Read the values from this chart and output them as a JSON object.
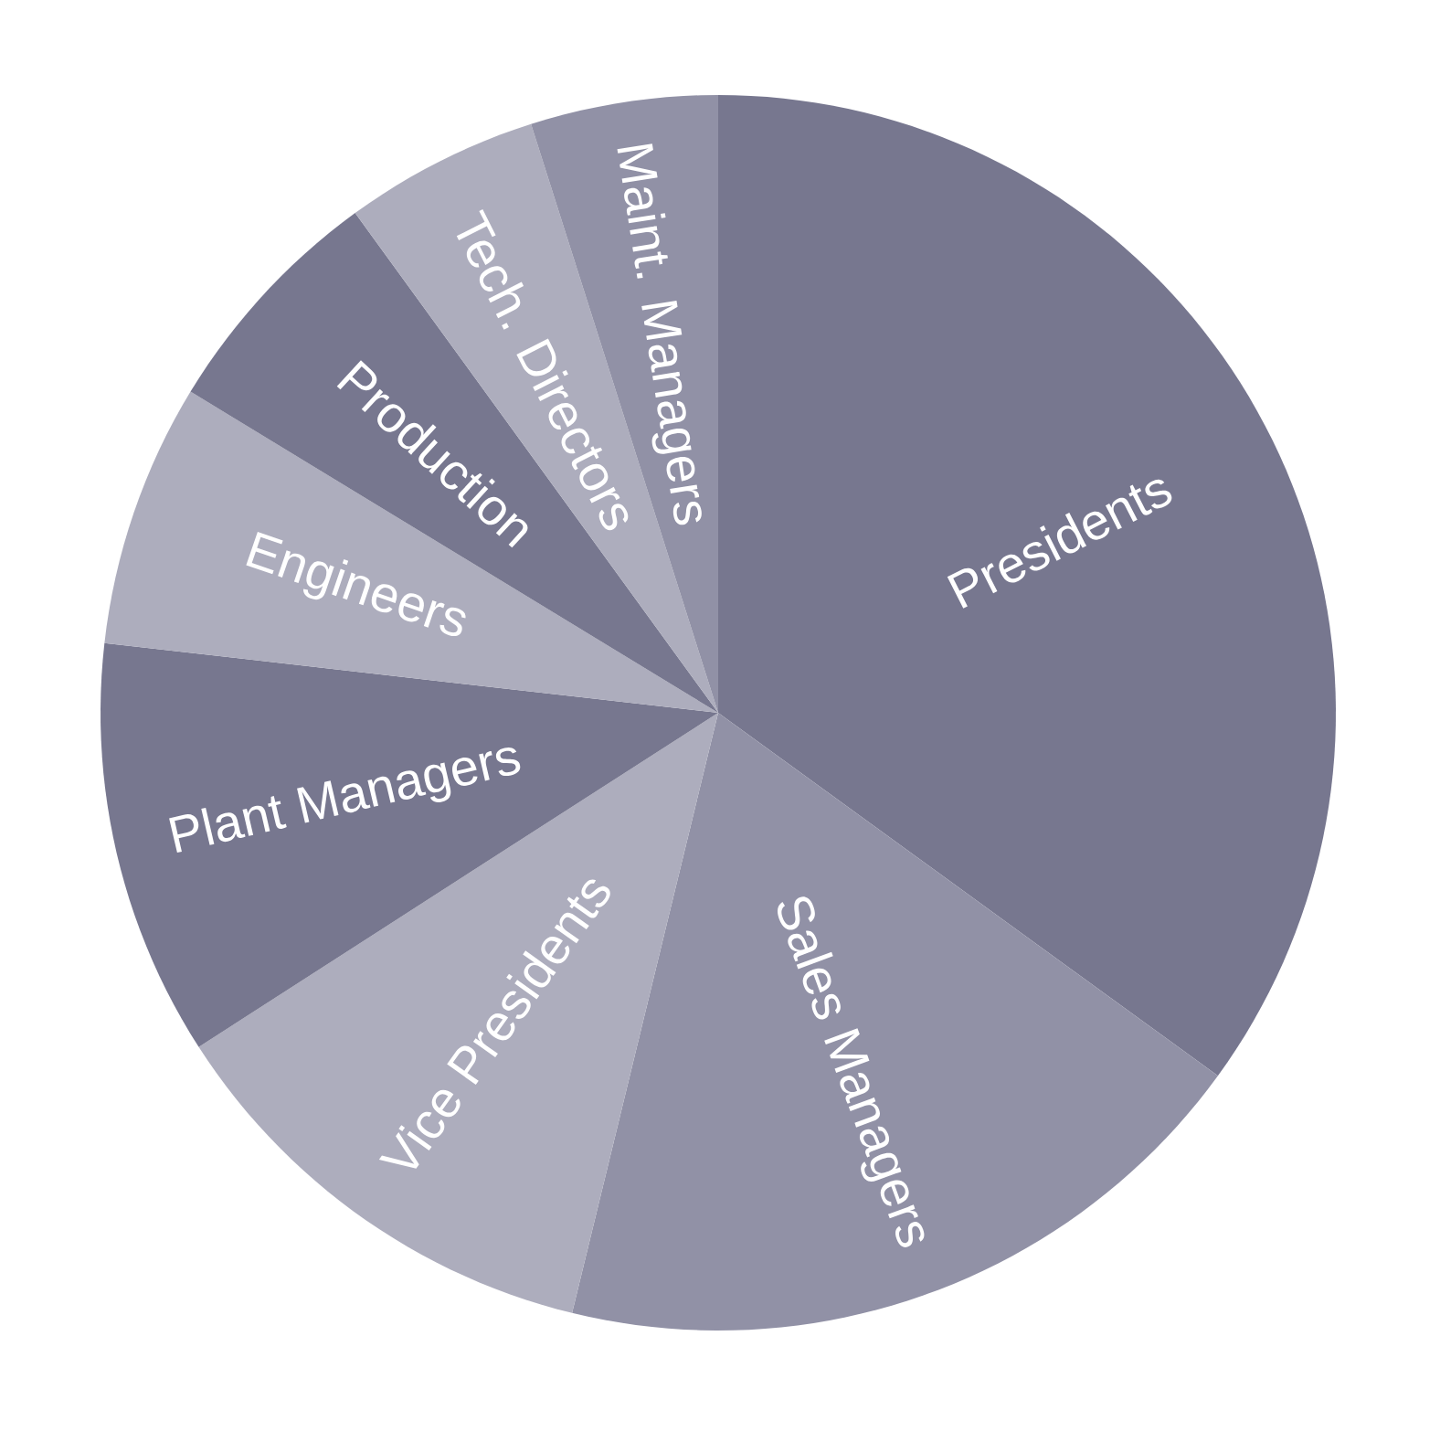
{
  "chart_data": {
    "type": "pie",
    "categories": [
      "Presidents",
      "Sales Managers",
      "Vice Presidents",
      "Plant Managers",
      "Engineers",
      "Production",
      "Tech. Directors",
      "Maint. Managers"
    ],
    "values": [
      35.0,
      18.8,
      12.1,
      10.9,
      6.9,
      6.3,
      5.1,
      4.9
    ],
    "colors": [
      "#77778f",
      "#9191a6",
      "#adadbd",
      "#77778f",
      "#adadbd",
      "#77778f",
      "#adadbd",
      "#9191a6"
    ]
  }
}
